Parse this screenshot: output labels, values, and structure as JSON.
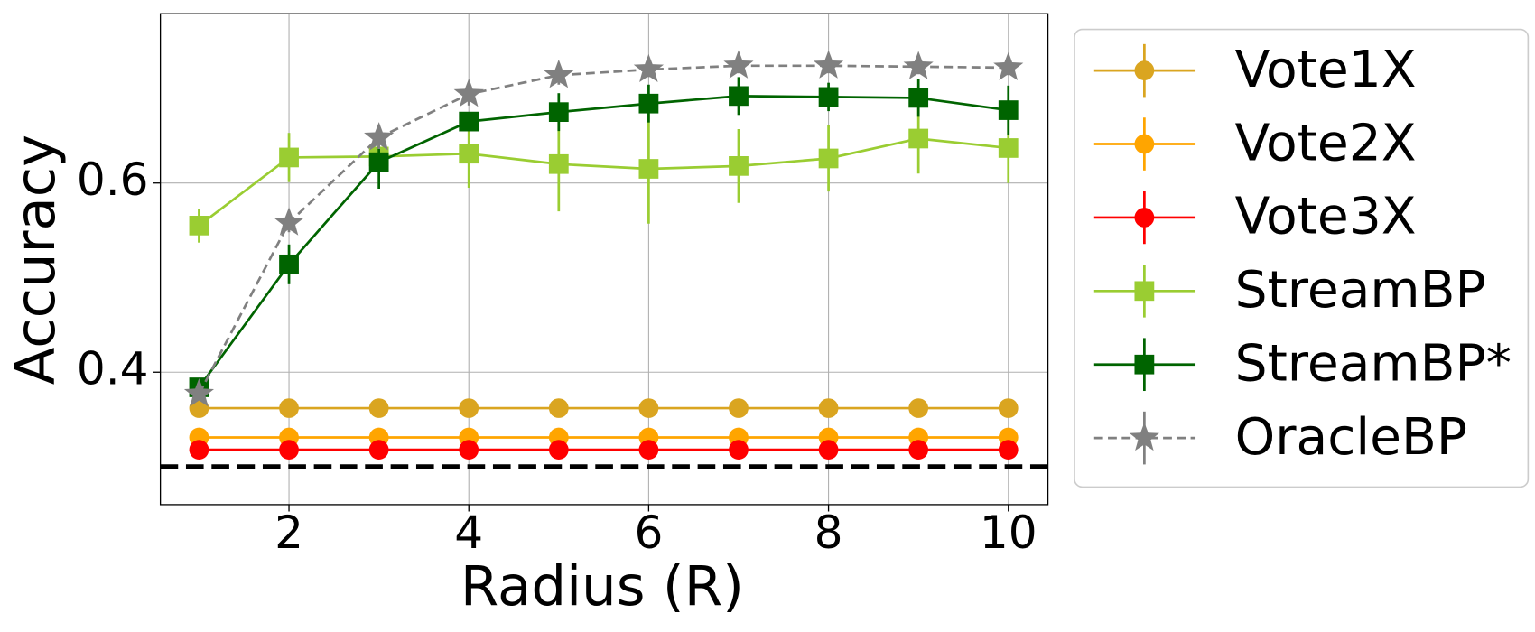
{
  "chart_data": {
    "type": "line",
    "x_label": "Radius (R)",
    "y_label": "Accuracy",
    "x": [
      1,
      2,
      3,
      4,
      5,
      6,
      7,
      8,
      9,
      10
    ],
    "xlim": [
      0.57,
      10.44
    ],
    "ylim": [
      0.26,
      0.779
    ],
    "xticks": [
      2,
      4,
      6,
      8,
      10
    ],
    "yticks": [
      0.4,
      0.6
    ],
    "grid": true,
    "legend": "outside-right",
    "reference_line": {
      "value": 0.3,
      "color": "#000000",
      "style": "dashed"
    },
    "series": [
      {
        "name": "Vote1X",
        "color": "#daa520",
        "marker": "circle",
        "style": "solid",
        "values": [
          0.362,
          0.362,
          0.362,
          0.362,
          0.362,
          0.362,
          0.362,
          0.362,
          0.362,
          0.362
        ],
        "errors": [
          0.004,
          0.004,
          0.004,
          0.004,
          0.004,
          0.004,
          0.004,
          0.004,
          0.004,
          0.004
        ]
      },
      {
        "name": "Vote2X",
        "color": "#ffa500",
        "marker": "circle",
        "style": "solid",
        "values": [
          0.331,
          0.331,
          0.331,
          0.331,
          0.331,
          0.331,
          0.331,
          0.331,
          0.331,
          0.331
        ],
        "errors": [
          0.002,
          0.002,
          0.002,
          0.002,
          0.002,
          0.002,
          0.002,
          0.002,
          0.002,
          0.002
        ]
      },
      {
        "name": "Vote3X",
        "color": "#ff0000",
        "marker": "circle",
        "style": "solid",
        "values": [
          0.318,
          0.318,
          0.318,
          0.318,
          0.318,
          0.318,
          0.318,
          0.318,
          0.318,
          0.318
        ],
        "errors": [
          0.001,
          0.001,
          0.001,
          0.001,
          0.001,
          0.001,
          0.001,
          0.001,
          0.001,
          0.001
        ]
      },
      {
        "name": "StreamBP",
        "color": "#9acd32",
        "marker": "square",
        "style": "solid",
        "values": [
          0.555,
          0.627,
          0.628,
          0.631,
          0.62,
          0.615,
          0.618,
          0.626,
          0.647,
          0.637
        ],
        "errors": [
          0.018,
          0.026,
          0.005,
          0.036,
          0.05,
          0.058,
          0.039,
          0.035,
          0.037,
          0.037
        ]
      },
      {
        "name": "StreamBP*",
        "color": "#006400",
        "marker": "square",
        "style": "solid",
        "values": [
          0.384,
          0.514,
          0.622,
          0.665,
          0.675,
          0.684,
          0.692,
          0.691,
          0.69,
          0.677
        ],
        "errors": [
          0.006,
          0.021,
          0.028,
          0.01,
          0.02,
          0.02,
          0.02,
          0.015,
          0.02,
          0.026
        ]
      },
      {
        "name": "OracleBP",
        "color": "#808080",
        "marker": "star",
        "style": "dashed",
        "values": [
          0.377,
          0.558,
          0.648,
          0.694,
          0.714,
          0.72,
          0.724,
          0.724,
          0.723,
          0.722
        ],
        "errors": [
          0.006,
          0.01,
          0.012,
          0.012,
          0.01,
          0.008,
          0.008,
          0.008,
          0.008,
          0.008
        ]
      }
    ]
  }
}
